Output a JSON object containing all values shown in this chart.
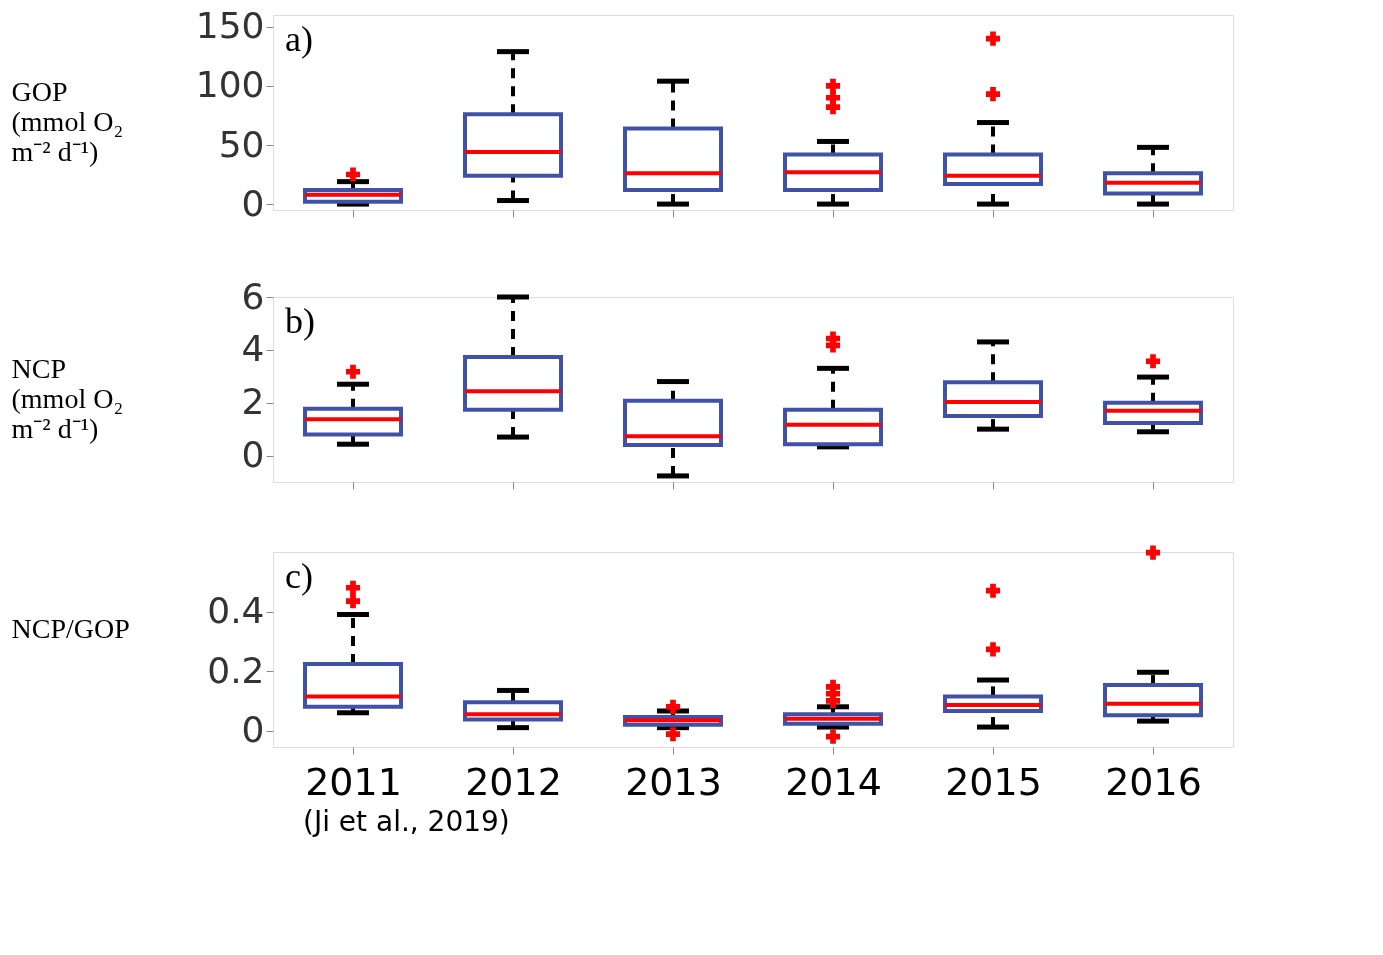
{
  "chart_data": [
    {
      "type": "box",
      "categories": [
        "2011",
        "2012",
        "2013",
        "2014",
        "2015",
        "2016"
      ],
      "ylabel": "GOP\n(mmol O₂\nm⁻² d⁻¹)",
      "ylim": [
        -5,
        160
      ],
      "yticks": [
        0,
        50,
        100,
        150
      ],
      "tick_labels": "y",
      "color": "#4052a8",
      "annotations": [
        "a)"
      ],
      "boxes": [
        {
          "low": 0,
          "q1": 2,
          "median": 8,
          "q3": 12,
          "high": 19,
          "outliers": [
            25
          ]
        },
        {
          "low": 3,
          "q1": 24,
          "median": 44,
          "q3": 76,
          "high": 129
        },
        {
          "low": 0,
          "q1": 12,
          "median": 26,
          "q3": 64,
          "high": 104
        },
        {
          "low": 0,
          "q1": 12,
          "median": 27,
          "q3": 42,
          "high": 53,
          "outliers": [
            100,
            90,
            82
          ]
        },
        {
          "low": 0,
          "q1": 17,
          "median": 24,
          "q3": 42,
          "high": 69,
          "outliers": [
            140,
            93
          ]
        },
        {
          "low": 0,
          "q1": 9,
          "median": 18,
          "q3": 26,
          "high": 48
        }
      ]
    },
    {
      "type": "box",
      "categories": [
        "2011",
        "2012",
        "2013",
        "2014",
        "2015",
        "2016"
      ],
      "ylabel": "NCP\n(mmol O₂\nm⁻² d⁻¹)",
      "ylim": [
        -1,
        6
      ],
      "yticks": [
        0,
        2,
        4,
        6
      ],
      "tick_labels": "y",
      "color": "#4052a8",
      "annotations": [
        "b)"
      ],
      "boxes": [
        {
          "low": 0.43,
          "q1": 0.8,
          "median": 1.37,
          "q3": 1.77,
          "high": 2.7,
          "outliers": [
            3.17
          ]
        },
        {
          "low": 0.7,
          "q1": 1.73,
          "median": 2.43,
          "q3": 3.73,
          "high": 6.0
        },
        {
          "low": -0.77,
          "q1": 0.4,
          "median": 0.73,
          "q3": 2.07,
          "high": 2.8
        },
        {
          "low": 0.33,
          "q1": 0.43,
          "median": 1.17,
          "q3": 1.73,
          "high": 3.3,
          "outliers": [
            4.43,
            4.17
          ]
        },
        {
          "low": 1.0,
          "q1": 1.5,
          "median": 2.03,
          "q3": 2.77,
          "high": 4.3
        },
        {
          "low": 0.9,
          "q1": 1.23,
          "median": 1.7,
          "q3": 2.0,
          "high": 2.97,
          "outliers": [
            3.57
          ]
        }
      ]
    },
    {
      "type": "box",
      "categories": [
        "2011",
        "2012",
        "2013",
        "2014",
        "2015",
        "2016"
      ],
      "ylabel": "NCP/GOP",
      "ylim": [
        -0.055,
        0.6
      ],
      "yticks": [
        0,
        0.2,
        0.4
      ],
      "color": "#4052a8",
      "annotations": [
        "c)",
        "(Ji et al., 2019)"
      ],
      "boxes": [
        {
          "low": 0.06,
          "q1": 0.08,
          "median": 0.115,
          "q3": 0.224,
          "high": 0.39,
          "outliers": [
            0.48,
            0.435
          ]
        },
        {
          "low": 0.01,
          "q1": 0.037,
          "median": 0.055,
          "q3": 0.095,
          "high": 0.135
        },
        {
          "low": 0.01,
          "q1": 0.02,
          "median": 0.035,
          "q3": 0.046,
          "high": 0.066,
          "outliers": [
            0.08,
            -0.012
          ]
        },
        {
          "low": 0.012,
          "q1": 0.023,
          "median": 0.04,
          "q3": 0.055,
          "high": 0.08,
          "outliers": [
            0.147,
            0.124,
            0.1,
            -0.02
          ]
        },
        {
          "low": 0.012,
          "q1": 0.066,
          "median": 0.086,
          "q3": 0.115,
          "high": 0.17,
          "outliers": [
            0.47,
            0.273
          ]
        },
        {
          "low": 0.032,
          "q1": 0.052,
          "median": 0.09,
          "q3": 0.153,
          "high": 0.196,
          "outliers": [
            0.598
          ]
        }
      ]
    }
  ]
}
